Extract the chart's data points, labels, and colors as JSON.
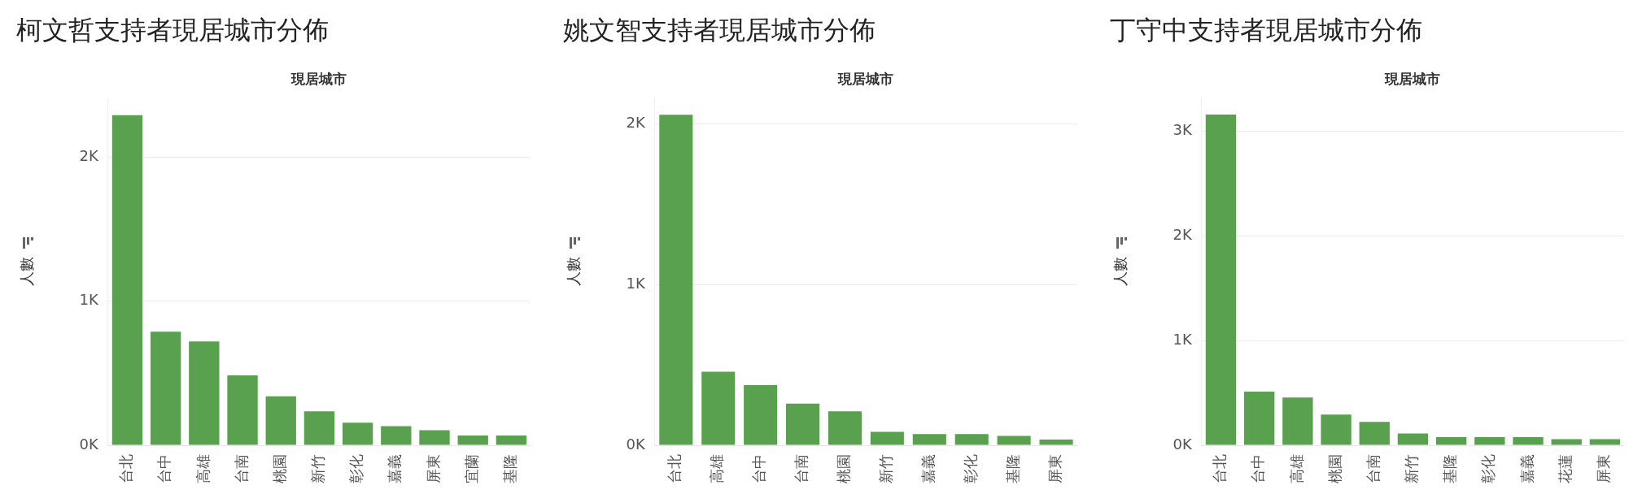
{
  "chart_data": [
    {
      "type": "bar",
      "title": "柯文哲支持者現居城市分佈",
      "xlabel": "現居城市",
      "ylabel": "人數",
      "categories": [
        "台北",
        "台中",
        "高雄",
        "台南",
        "桃園",
        "新竹",
        "彰化",
        "嘉義",
        "屏東",
        "宜蘭",
        "基隆"
      ],
      "values": [
        2290,
        787,
        720,
        485,
        339,
        235,
        157,
        132,
        104,
        67,
        67
      ],
      "color": "#59a14f",
      "ylim": [
        0,
        2410
      ],
      "yticks": [
        {
          "value": 0,
          "label": "0K"
        },
        {
          "value": 1000,
          "label": "1K"
        },
        {
          "value": 2000,
          "label": "2K"
        }
      ],
      "grid": "y",
      "legend": false
    },
    {
      "type": "bar",
      "title": "姚文智支持者現居城市分佈",
      "xlabel": "現居城市",
      "ylabel": "人數",
      "categories": [
        "台北",
        "高雄",
        "台中",
        "台南",
        "桃園",
        "新竹",
        "嘉義",
        "彰化",
        "基隆",
        "屏東"
      ],
      "values": [
        2055,
        457,
        374,
        259,
        211,
        83,
        70,
        70,
        58,
        35
      ],
      "color": "#59a14f",
      "ylim": [
        0,
        2160
      ],
      "yticks": [
        {
          "value": 0,
          "label": "0K"
        },
        {
          "value": 1000,
          "label": "1K"
        },
        {
          "value": 2000,
          "label": "2K"
        }
      ],
      "grid": "y",
      "legend": false
    },
    {
      "type": "bar",
      "title": "丁守中支持者現居城市分佈",
      "xlabel": "現居城市",
      "ylabel": "人數",
      "categories": [
        "台北",
        "台中",
        "高雄",
        "桃園",
        "台南",
        "新竹",
        "基隆",
        "彰化",
        "嘉義",
        "花蓮",
        "屏東"
      ],
      "values": [
        3160,
        512,
        457,
        293,
        223,
        113,
        78,
        78,
        78,
        59,
        59
      ],
      "color": "#59a14f",
      "ylim": [
        0,
        3320
      ],
      "yticks": [
        {
          "value": 0,
          "label": "0K"
        },
        {
          "value": 1000,
          "label": "1K"
        },
        {
          "value": 2000,
          "label": "2K"
        },
        {
          "value": 3000,
          "label": "3K"
        }
      ],
      "grid": "y",
      "legend": false
    }
  ]
}
